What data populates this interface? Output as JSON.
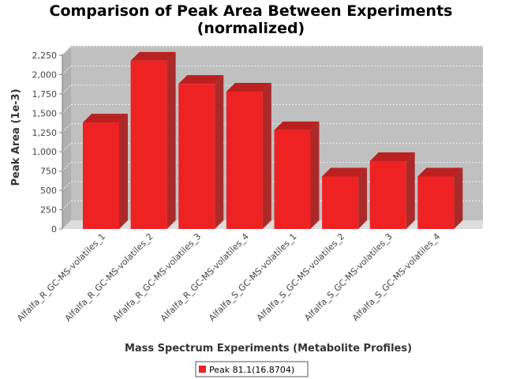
{
  "chart_data": {
    "type": "bar",
    "title": "Comparison of Peak Area Between Experiments",
    "subtitle": "(normalized)",
    "xlabel": "Mass Spectrum Experiments (Metabolite Profiles)",
    "ylabel": "Peak Area (1e-3)",
    "categories": [
      "Alfalfa_R_GC-MS-volatiles_1",
      "Alfalfa_R_GC-MS-volatiles_2",
      "Alfalfa_R_GC-MS-volatiles_3",
      "Alfalfa_R_GC-MS-volatiles_4",
      "Alfalfa_S_GC-MS-volatiles_1",
      "Alfalfa_S_GC-MS-volatiles_2",
      "Alfalfa_S_GC-MS-volatiles_3",
      "Alfalfa_S_GC-MS-volatiles_4"
    ],
    "series": [
      {
        "name": "Peak 81.1(16.8704)",
        "color": "#ee2222",
        "values": [
          1380,
          2180,
          1880,
          1780,
          1280,
          680,
          880,
          680
        ]
      }
    ],
    "ylim": [
      0,
      2250
    ],
    "yticks": [
      0,
      250,
      500,
      750,
      1000,
      1250,
      1500,
      1750,
      2000,
      2250
    ],
    "ytick_labels": [
      "0",
      "250",
      "500",
      "750",
      "1,000",
      "1,250",
      "1,500",
      "1,750",
      "2,000",
      "2,250"
    ],
    "grid": true,
    "legend_position": "bottom",
    "plot_background": "#c0c0c0"
  }
}
